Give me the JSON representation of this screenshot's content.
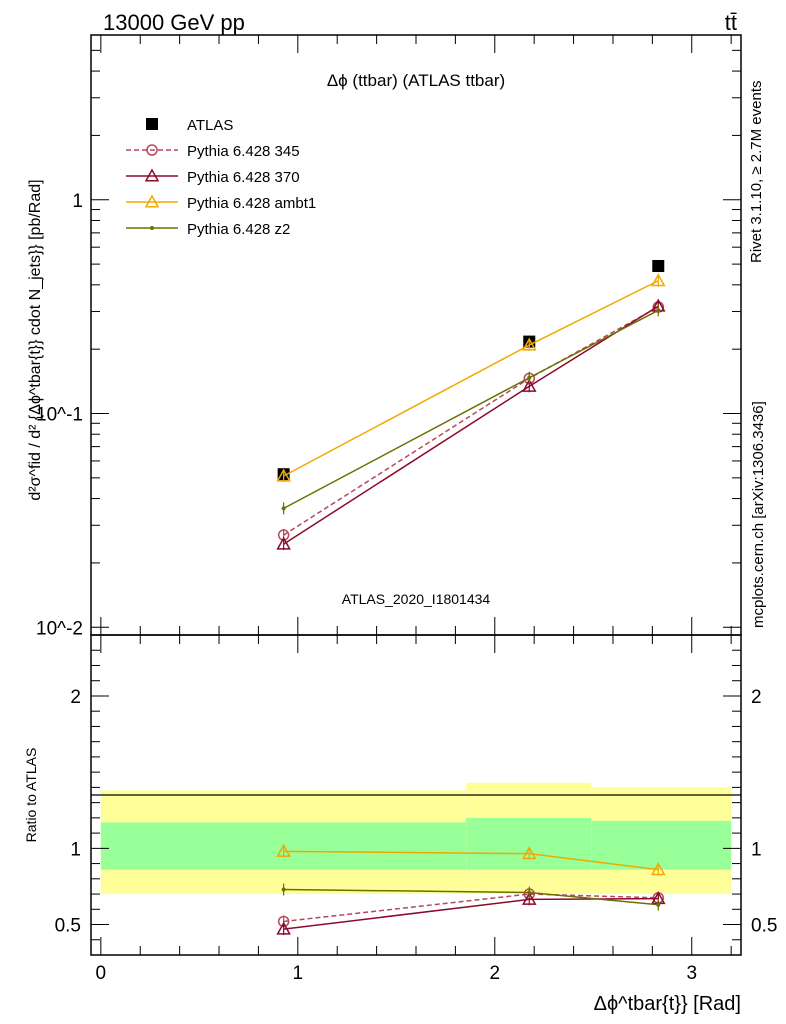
{
  "header": {
    "energy": "13000 GeV pp",
    "process": "tt̄"
  },
  "plot_title": "Δϕ (ttbar) (ATLAS ttbar)",
  "analysis_id": "ATLAS_2020_I1801434",
  "side_text": {
    "rivet": "Rivet 3.1.10, ≥ 2.7M events",
    "source": "mcplots.cern.ch [arXiv:1306.3436]"
  },
  "axes": {
    "ylabel_main": "d²σ^fid / d² {Δϕ^tbar{t}} cdot N_jets}} [pb/Rad]",
    "ylabel_ratio": "Ratio to ATLAS",
    "xlabel": "Δϕ^tbar{t}} [Rad]"
  },
  "chart_data": [
    {
      "type": "line",
      "panel": "main",
      "yscale": "log",
      "xlim": [
        -0.05,
        3.25
      ],
      "ylim": [
        0.0092,
        5.9
      ],
      "x": [
        0.928,
        2.175,
        2.83
      ],
      "ytick_labels": [
        "10^-2",
        "10^-1",
        "1"
      ],
      "xtick_labels": [
        "0",
        "1",
        "2",
        "3"
      ],
      "series": [
        {
          "name": "ATLAS",
          "marker": "square",
          "color": "#000000",
          "values": [
            0.052,
            0.217,
            0.49
          ]
        },
        {
          "name": "Pythia 6.428 345",
          "marker": "circle",
          "dash": true,
          "color": "#b5485d",
          "values": [
            0.027,
            0.146,
            0.315
          ]
        },
        {
          "name": "Pythia 6.428 370",
          "marker": "triangle",
          "color": "#8b0a2e",
          "values": [
            0.0245,
            0.134,
            0.318
          ]
        },
        {
          "name": "Pythia 6.428 ambt1",
          "marker": "triangle",
          "color": "#f2a800",
          "values": [
            0.051,
            0.209,
            0.418
          ]
        },
        {
          "name": "Pythia 6.428 z2",
          "marker": "dot",
          "color": "#6b7000",
          "values": [
            0.036,
            0.147,
            0.304
          ]
        }
      ]
    },
    {
      "type": "line",
      "panel": "ratio",
      "xlim": [
        -0.05,
        3.25
      ],
      "ylim": [
        0.3,
        2.4
      ],
      "x": [
        0.928,
        2.175,
        2.83
      ],
      "ytick_labels": [
        "0.5",
        "1",
        "2"
      ],
      "bands": {
        "edges": [
          0.0,
          1.855,
          2.49,
          3.2
        ],
        "yellow": [
          [
            0.7,
            1.38
          ],
          [
            0.7,
            1.43
          ],
          [
            0.7,
            1.4
          ]
        ],
        "green": [
          [
            0.86,
            1.17
          ],
          [
            0.86,
            1.2
          ],
          [
            0.86,
            1.18
          ]
        ]
      },
      "series": [
        {
          "name": "Pythia 6.428 345",
          "marker": "circle",
          "dash": true,
          "color": "#b5485d",
          "values": [
            0.52,
            0.7,
            0.675
          ]
        },
        {
          "name": "Pythia 6.428 370",
          "marker": "triangle",
          "color": "#8b0a2e",
          "values": [
            0.47,
            0.665,
            0.67
          ]
        },
        {
          "name": "Pythia 6.428 ambt1",
          "marker": "triangle",
          "color": "#f2a800",
          "values": [
            0.98,
            0.965,
            0.86
          ]
        },
        {
          "name": "Pythia 6.428 z2",
          "marker": "dot",
          "color": "#6b7000",
          "values": [
            0.73,
            0.71,
            0.63
          ]
        }
      ]
    }
  ]
}
